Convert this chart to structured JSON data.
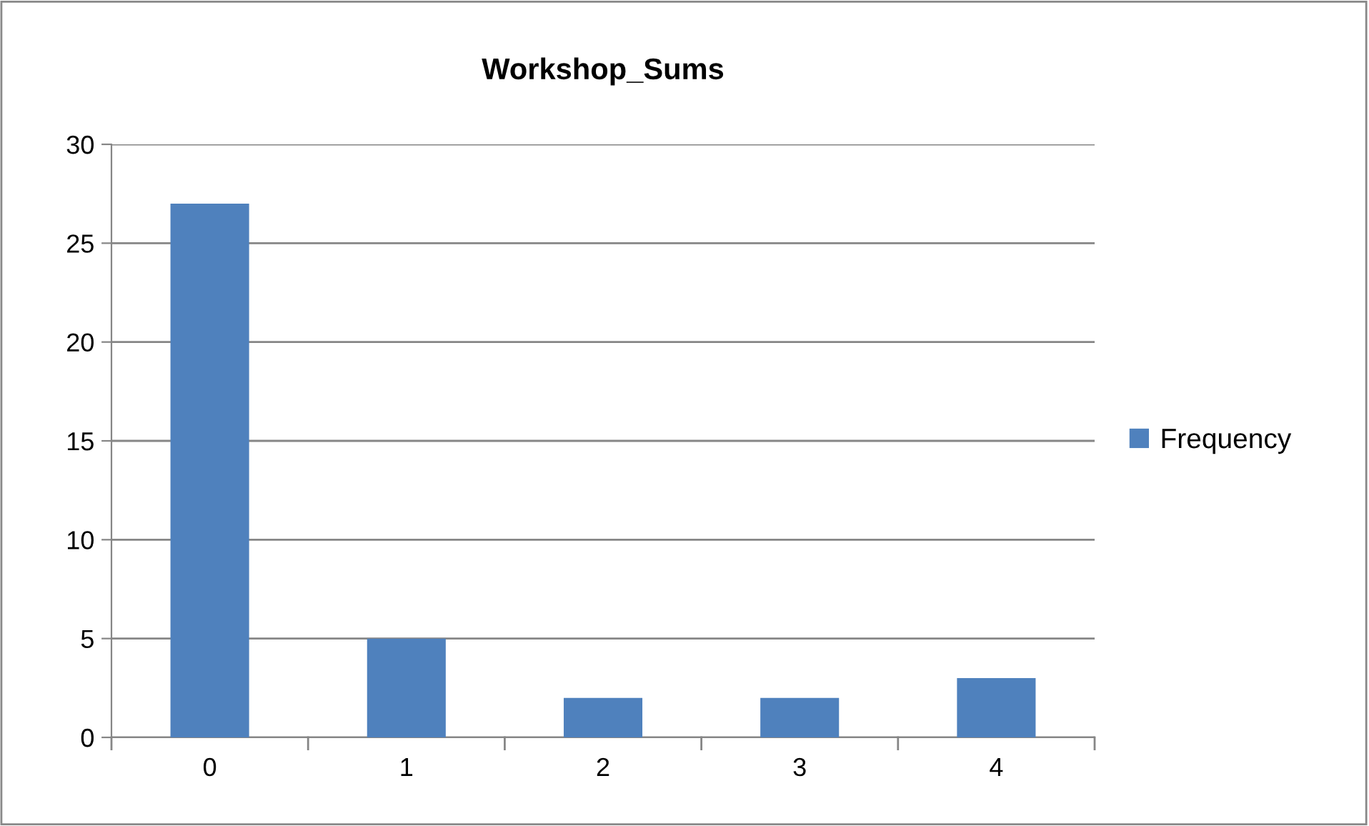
{
  "chart_data": {
    "type": "bar",
    "title": "Workshop_Sums",
    "categories": [
      "0",
      "1",
      "2",
      "3",
      "4"
    ],
    "series": [
      {
        "name": "Frequency",
        "color": "#4f81bd",
        "values": [
          27,
          5,
          2,
          2,
          3
        ]
      }
    ],
    "ylim": [
      0,
      30
    ],
    "yticks": [
      0,
      5,
      10,
      15,
      20,
      25,
      30
    ],
    "grid": "y",
    "legend": "right"
  }
}
